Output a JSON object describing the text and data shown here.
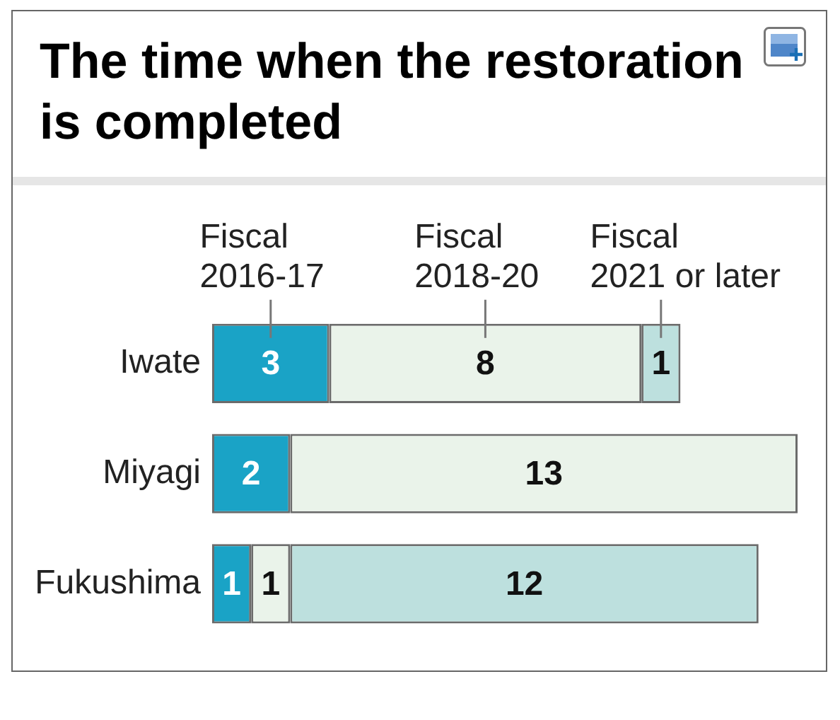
{
  "chart_data": {
    "type": "bar",
    "orientation": "horizontal",
    "stacked": true,
    "title": "The time when the restoration is completed",
    "categories": [
      "Iwate",
      "Miyagi",
      "Fukushima"
    ],
    "series": [
      {
        "name": "Fiscal 2016-17",
        "color": "#1aa3c6",
        "values": [
          3,
          2,
          1
        ]
      },
      {
        "name": "Fiscal 2018-20",
        "color": "#eaf3ea",
        "values": [
          8,
          13,
          1
        ]
      },
      {
        "name": "Fiscal 2021 or later",
        "color": "#bde0de",
        "values": [
          1,
          null,
          12
        ]
      }
    ],
    "data_labels": true,
    "tick_labels": "y",
    "grid": false
  }
}
